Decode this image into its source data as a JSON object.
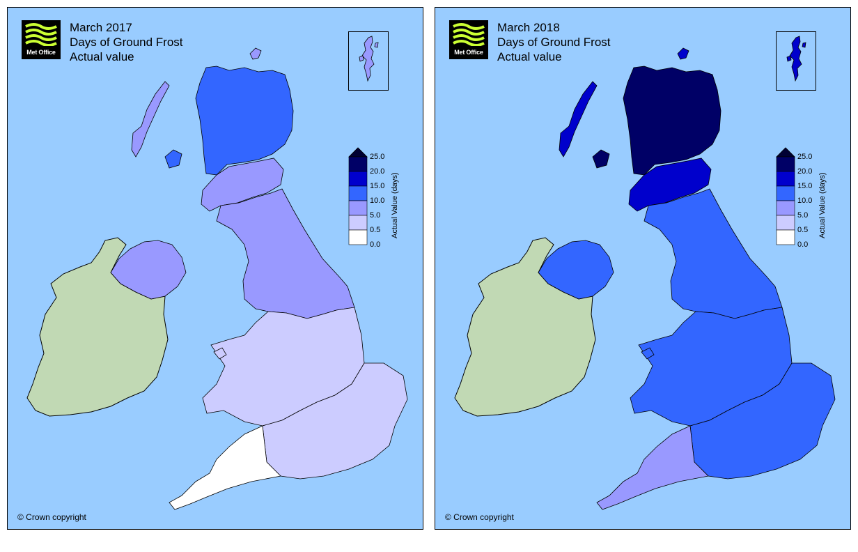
{
  "panels": [
    {
      "id": "left",
      "logo_text": "Met Office",
      "title_line1": "March 2017",
      "title_line2": "Days of Ground Frost",
      "title_line3": "Actual value",
      "copyright": "© Crown copyright",
      "fill_levels": {
        "scotland_north": 3,
        "scotland_south": 2,
        "northern_ireland": 2,
        "north_england": 2,
        "midlands_wales": 1,
        "south_england": 1,
        "southwest": 0
      }
    },
    {
      "id": "right",
      "logo_text": "Met Office",
      "title_line1": "March 2018",
      "title_line2": "Days of Ground Frost",
      "title_line3": "Actual value",
      "copyright": "© Crown copyright",
      "fill_levels": {
        "scotland_north": 5,
        "scotland_south": 4,
        "northern_ireland": 3,
        "north_england": 3,
        "midlands_wales": 3,
        "south_england": 3,
        "southwest": 2
      }
    }
  ],
  "legend": {
    "axis_title": "Actual Value (days)",
    "ticks": [
      "25.0",
      "20.0",
      "15.0",
      "10.0",
      "5.0",
      "0.5",
      "0.0"
    ],
    "colors": [
      "#000066",
      "#0000cc",
      "#3366ff",
      "#9999ff",
      "#ccccff",
      "#ffffff"
    ],
    "extend_color": "#000033"
  },
  "colors": {
    "sea": "#99ccff",
    "ireland": "#c1d9b4",
    "outline": "#000000"
  }
}
